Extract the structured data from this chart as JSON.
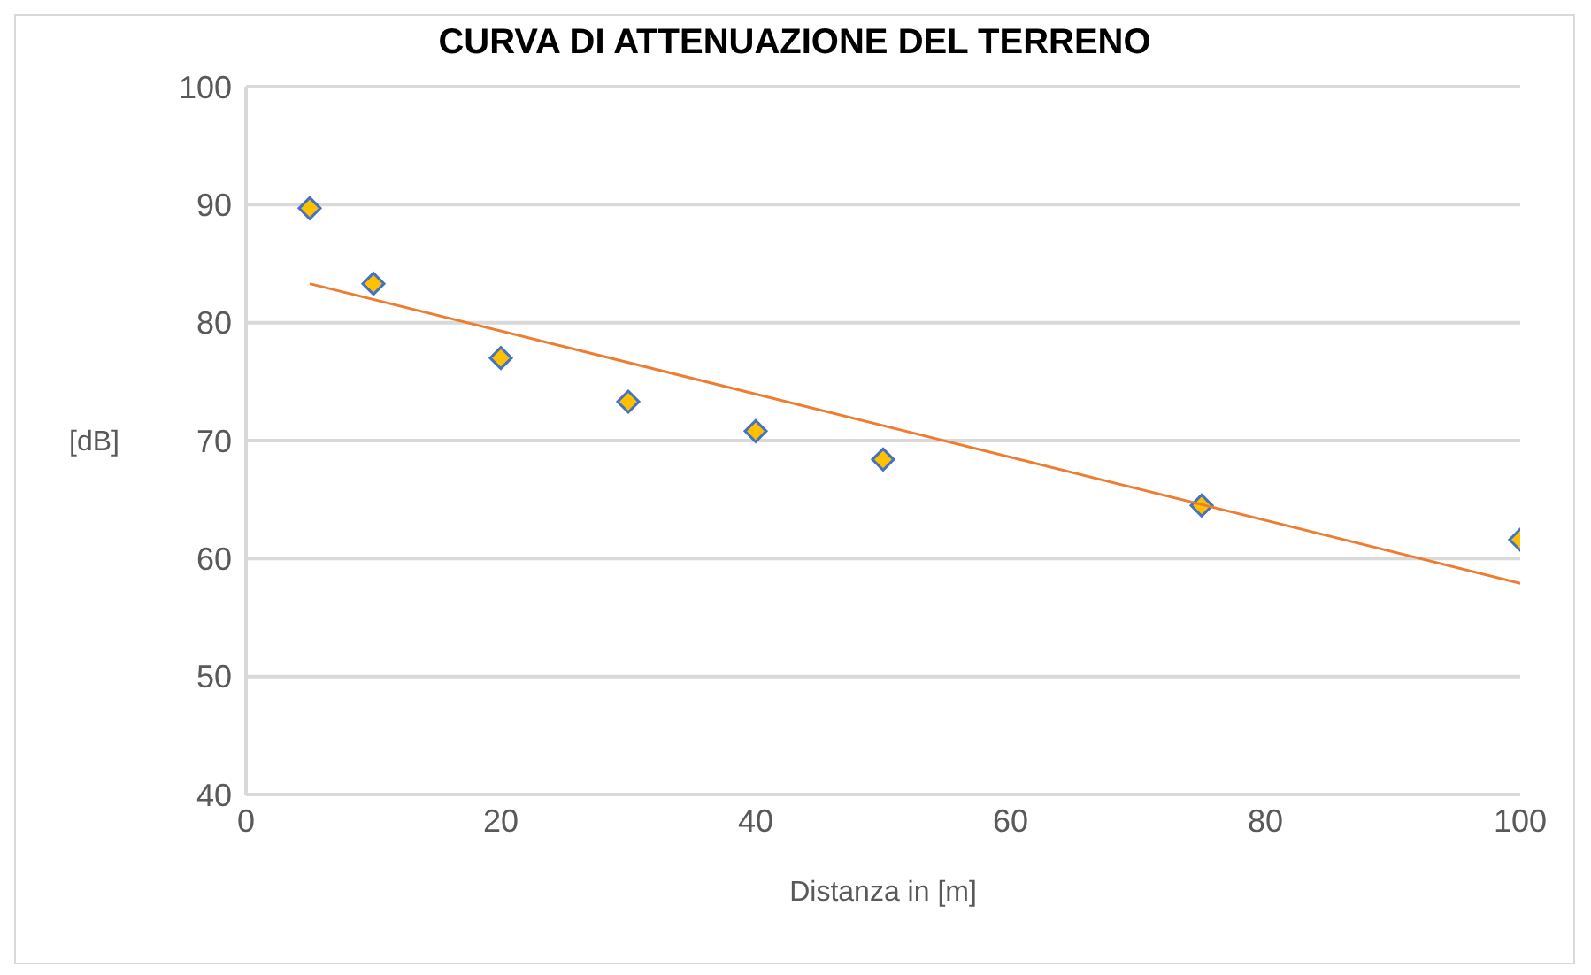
{
  "chart_data": {
    "type": "scatter",
    "title": "CURVA DI ATTENUAZIONE DEL TERRENO",
    "xlabel": "Distanza in [m]",
    "ylabel": "[dB]",
    "x": [
      5,
      10,
      20,
      30,
      40,
      50,
      75,
      100
    ],
    "series": [
      {
        "color": "#ffc000",
        "values": [
          89.7,
          83.3,
          77.0,
          73.3,
          70.8,
          68.4,
          64.5,
          61.6
        ],
        "marker": "diamond"
      },
      {
        "type": "line",
        "color": "#ed7d31",
        "x": [
          5,
          100
        ],
        "values": [
          83.3,
          57.9
        ],
        "marker": "none",
        "line_style": "solid"
      }
    ],
    "xlim": [
      0,
      100
    ],
    "xticks": [
      0,
      20,
      40,
      60,
      80,
      100
    ],
    "ylim": [
      40,
      100
    ],
    "yticks": [
      40,
      50,
      60,
      70,
      80,
      90,
      100
    ],
    "grid": "y",
    "legend": false
  }
}
